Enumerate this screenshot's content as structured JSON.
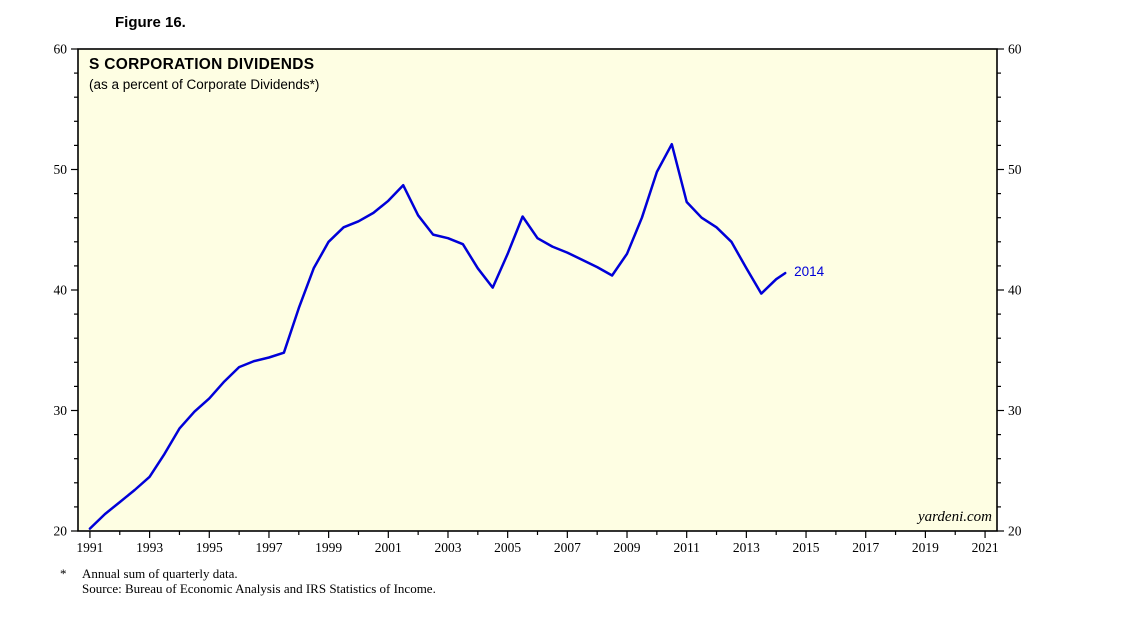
{
  "figure_label": "Figure 16.",
  "chart": {
    "title": "S CORPORATION DIVIDENDS",
    "subtitle": "(as a percent of Corporate Dividends*)",
    "watermark": "yardeni.com",
    "end_label": "2014",
    "line_color": "#0000D8",
    "plot_bg": "#FEFEE3",
    "frame_color": "#000000"
  },
  "footnote": {
    "marker": "*",
    "line1": "Annual sum of quarterly data.",
    "line2": "Source: Bureau of Economic Analysis and IRS Statistics of Income."
  },
  "chart_data": {
    "type": "line",
    "title": "S CORPORATION DIVIDENDS",
    "subtitle": "(as a percent of Corporate Dividends*)",
    "xlabel": "",
    "ylabel": "",
    "xlim": [
      1990.6,
      2021.4
    ],
    "ylim": [
      20,
      60
    ],
    "grid": false,
    "legend": "none",
    "y_major_ticks": [
      20,
      30,
      40,
      50,
      60
    ],
    "y_minor_step": 2,
    "x_major_ticks": [
      1991,
      1993,
      1995,
      1997,
      1999,
      2001,
      2003,
      2005,
      2007,
      2009,
      2011,
      2013,
      2015,
      2017,
      2019,
      2021
    ],
    "x_minor_step": 1,
    "annotation": "2014",
    "series": [
      {
        "name": "S corporation dividends as a percent of corporate dividends",
        "x": [
          1991.0,
          1991.5,
          1992.0,
          1992.5,
          1993.0,
          1993.5,
          1994.0,
          1994.5,
          1995.0,
          1995.5,
          1996.0,
          1996.5,
          1997.0,
          1997.5,
          1998.0,
          1998.5,
          1999.0,
          1999.5,
          2000.0,
          2000.5,
          2001.0,
          2001.5,
          2002.0,
          2002.5,
          2003.0,
          2003.5,
          2004.0,
          2004.5,
          2005.0,
          2005.5,
          2006.0,
          2006.5,
          2007.0,
          2007.5,
          2008.0,
          2008.5,
          2009.0,
          2009.5,
          2010.0,
          2010.5,
          2011.0,
          2011.5,
          2012.0,
          2012.5,
          2013.0,
          2013.5,
          2014.0,
          2014.3
        ],
        "y": [
          20.2,
          21.4,
          22.4,
          23.4,
          24.5,
          26.4,
          28.5,
          29.9,
          31.0,
          32.4,
          33.6,
          34.1,
          34.4,
          34.8,
          38.5,
          41.8,
          44.0,
          45.2,
          45.7,
          46.4,
          47.4,
          48.7,
          46.2,
          44.6,
          44.3,
          43.8,
          41.8,
          40.2,
          43.0,
          46.1,
          44.3,
          43.6,
          43.1,
          42.5,
          41.9,
          41.2,
          43.0,
          46.0,
          49.8,
          52.1,
          47.3,
          46.0,
          45.2,
          44.0,
          41.8,
          39.7,
          40.9,
          41.4
        ]
      }
    ]
  }
}
